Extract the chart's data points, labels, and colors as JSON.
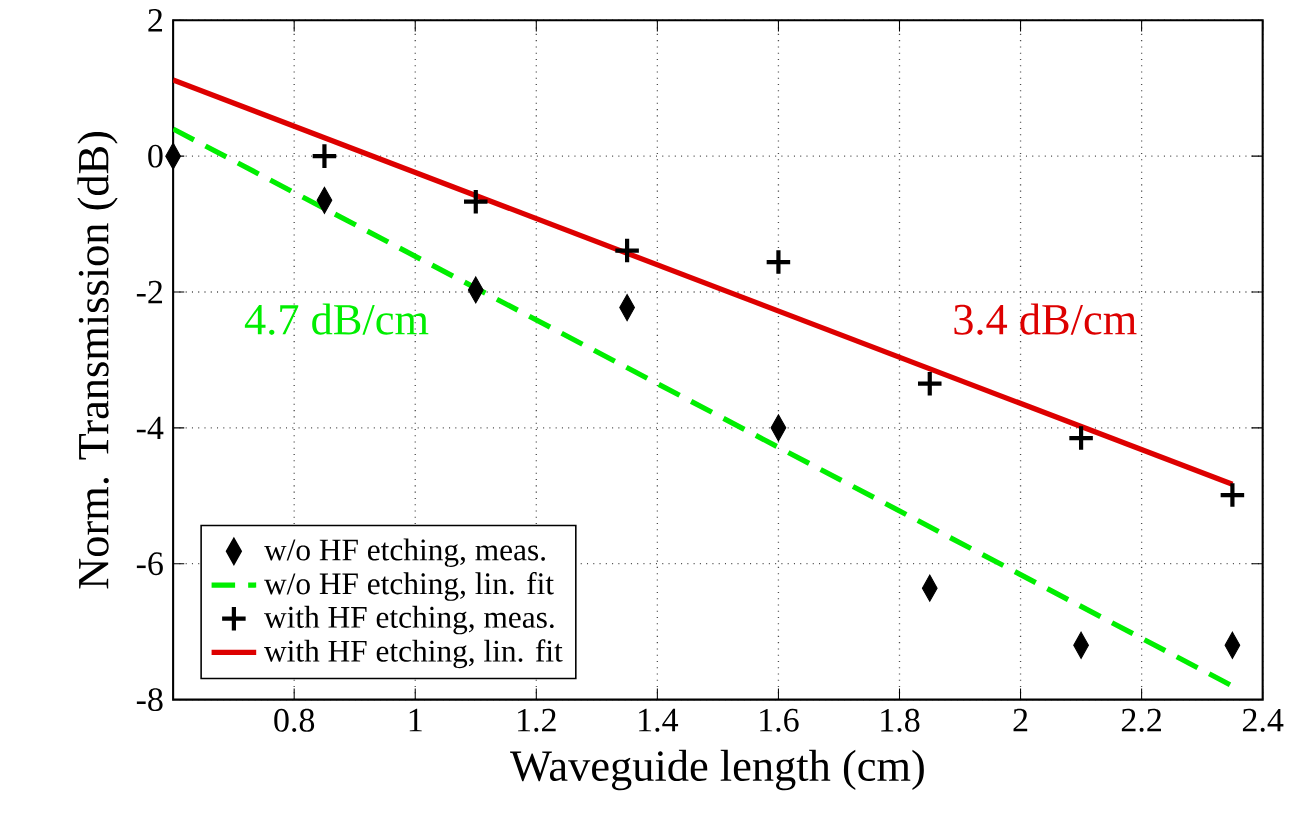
{
  "chart_data": {
    "type": "scatter",
    "xlabel": "Waveguide length (cm)",
    "ylabel": "Norm. Transmission (dB)",
    "xlim": [
      0.6,
      2.4
    ],
    "ylim": [
      -8,
      2
    ],
    "xticks": [
      0.8,
      1,
      1.2,
      1.4,
      1.6,
      1.8,
      2,
      2.2,
      2.4
    ],
    "yticks": [
      -8,
      -6,
      -4,
      -2,
      0,
      2
    ],
    "grid": true,
    "legend": "bottom left",
    "series": [
      {
        "name": "w/o HF etching, meas.",
        "marker": "diamond",
        "color": "#000000",
        "x": [
          0.6,
          0.85,
          1.1,
          1.35,
          1.6,
          1.85,
          2.1,
          2.35
        ],
        "values": [
          0,
          -0.65,
          -1.97,
          -2.23,
          -4.0,
          -6.36,
          -7.2,
          -7.2
        ]
      },
      {
        "name": "w/o HF etching, lin. fit",
        "type": "line",
        "line_style": "dashed",
        "color": "#00ee00",
        "x": [
          0.6,
          2.35
        ],
        "values": [
          0.4,
          -7.8
        ]
      },
      {
        "name": "with HF etching, meas.",
        "marker": "cross",
        "color": "#000000",
        "x": [
          0.85,
          1.1,
          1.35,
          1.6,
          1.85,
          2.1,
          2.35
        ],
        "values": [
          0,
          -0.67,
          -1.39,
          -1.56,
          -3.35,
          -4.15,
          -4.99
        ]
      },
      {
        "name": "with HF etching, lin. fit",
        "type": "line",
        "line_style": "solid",
        "color": "#dd0000",
        "x": [
          0.6,
          2.35
        ],
        "values": [
          1.12,
          -4.83
        ]
      }
    ],
    "annotations": [
      "4.7 dB/cm",
      "3.4 dB/cm"
    ]
  }
}
